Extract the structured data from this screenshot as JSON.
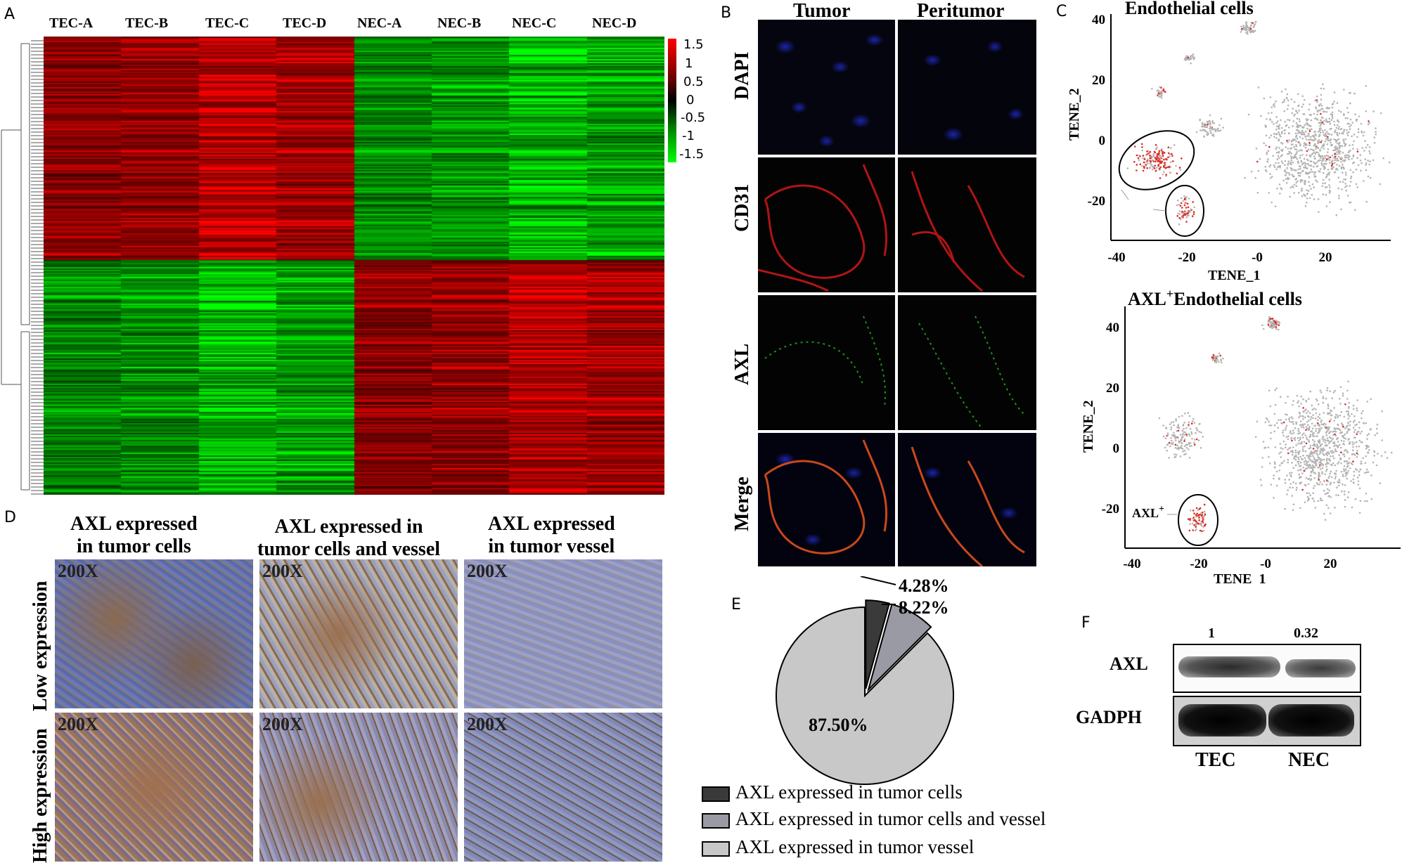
{
  "panel_labels": {
    "a": "A",
    "b": "B",
    "c": "C",
    "d": "D",
    "e": "E",
    "f": "F"
  },
  "heatmap": {
    "columns": [
      "TEC-A",
      "TEC-B",
      "TEC-C",
      "TEC-D",
      "NEC-A",
      "NEC-B",
      "NEC-C",
      "NEC-D"
    ],
    "scale_ticks": [
      "1.5",
      "1",
      "0.5",
      "0",
      "-0.5",
      "-1",
      "-1.5"
    ],
    "colors": {
      "high": "#ff0000",
      "mid": "#000000",
      "low": "#00ff00"
    }
  },
  "immunofluorescence": {
    "columns": [
      "Tumor",
      "Peritumor"
    ],
    "rows": [
      "DAPI",
      "CD31",
      "AXL",
      "Merge"
    ]
  },
  "tsne": {
    "top": {
      "title": "Endothelial cells",
      "xlabel": "TENE_1",
      "ylabel": "TENE_2",
      "xticks": [
        "-40",
        "-20",
        "-0",
        "20"
      ],
      "yticks": [
        "40",
        "20",
        "0",
        "-20"
      ]
    },
    "bottom": {
      "title_prefix": "AXL",
      "title_sup": "+",
      "title_suffix": "Endothelial cells",
      "annotation": "AXL",
      "annotation_sup": "+",
      "xlabel": "TENE_1",
      "ylabel": "TENE_2",
      "xticks": [
        "-40",
        "-20",
        "-0",
        "20"
      ],
      "yticks": [
        "40",
        "20",
        "0",
        "-20"
      ]
    }
  },
  "ihc": {
    "column_headers": [
      [
        "AXL expressed",
        "in tumor cells"
      ],
      [
        "AXL expressed in",
        "tumor cells and vessel"
      ],
      [
        "AXL expressed",
        "in  tumor vessel"
      ]
    ],
    "row_labels": [
      "Low expression",
      "High expression"
    ],
    "magnification": "200X"
  },
  "chart_data": {
    "type": "pie",
    "title": "",
    "slices": [
      {
        "label": "AXL expressed in tumor cells",
        "value": 4.28,
        "display": "4.28%",
        "color": "#3a3a3a"
      },
      {
        "label": "AXL expressed in tumor cells and vessel",
        "value": 8.22,
        "display": "8.22%",
        "color": "#9a9aa4"
      },
      {
        "label": "AXL expressed in tumor vessel",
        "value": 87.5,
        "display": "87.50%",
        "color": "#c8c8c8"
      }
    ],
    "legend_position": "bottom"
  },
  "western": {
    "row_labels": [
      "AXL",
      "GADPH"
    ],
    "column_labels": [
      "TEC",
      "NEC"
    ],
    "ratios": [
      "1",
      "0.32"
    ]
  }
}
